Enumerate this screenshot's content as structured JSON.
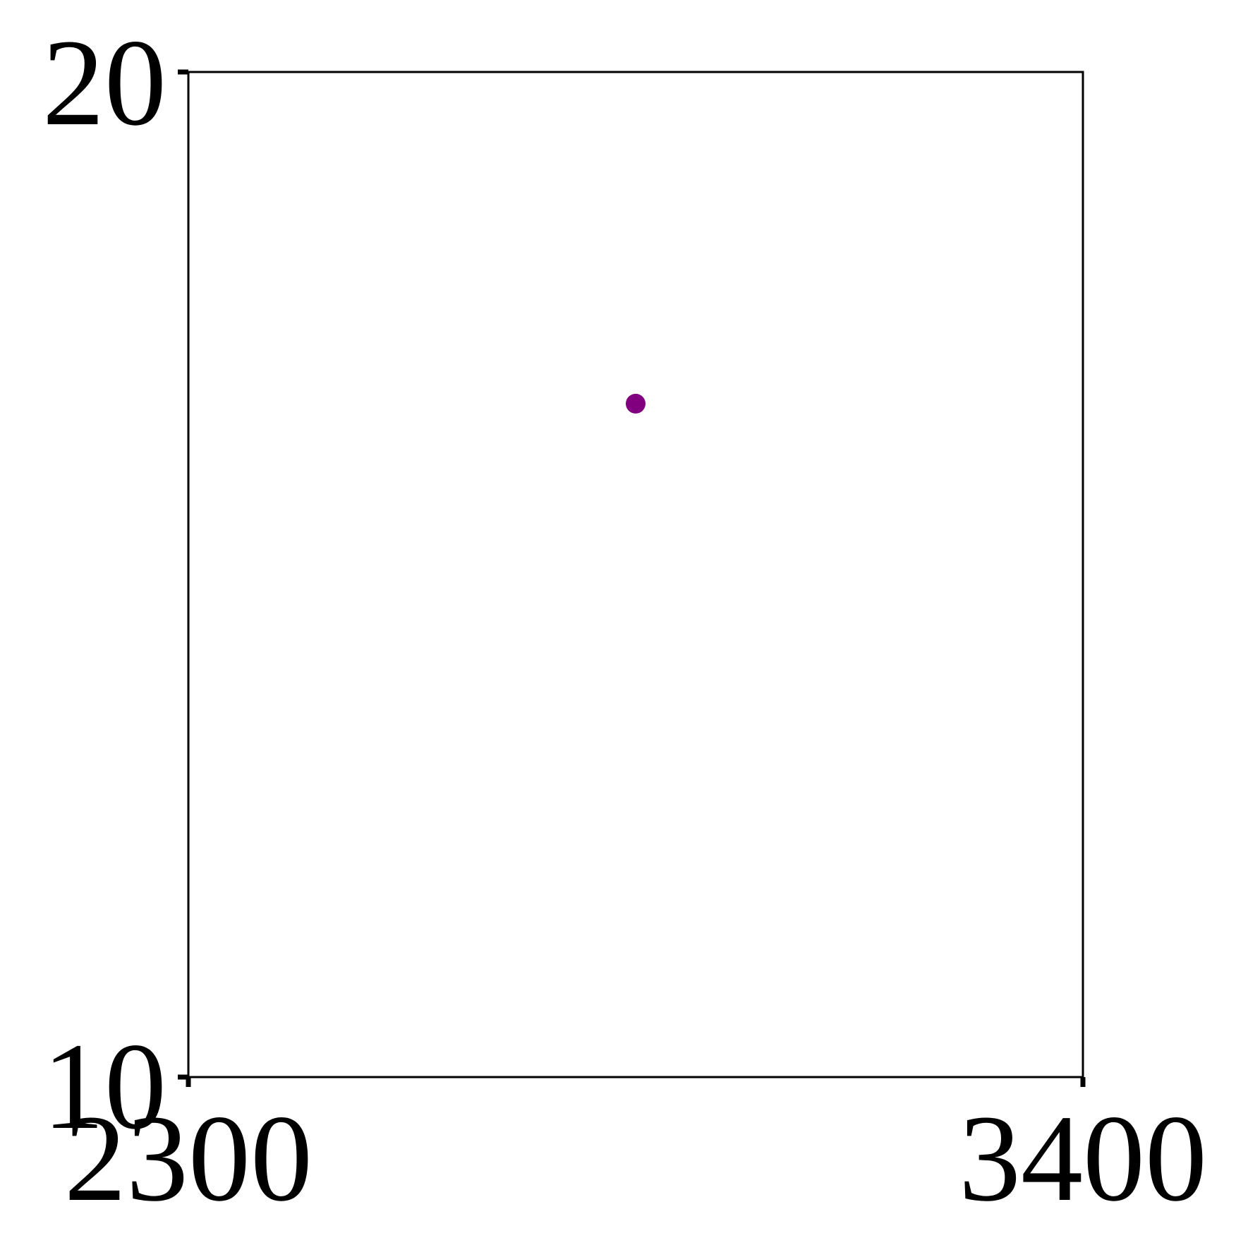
{
  "chart_data": {
    "type": "scatter",
    "title": "",
    "xlabel": "",
    "ylabel": "",
    "xlim": [
      2300,
      3400
    ],
    "ylim": [
      10,
      20
    ],
    "x_ticks": [
      "2300",
      "3400"
    ],
    "y_ticks": [
      "10",
      "20"
    ],
    "grid": false,
    "series": [
      {
        "points": [
          {
            "x": 2850,
            "y": 16.7
          }
        ]
      }
    ],
    "colors": {
      "point": "#800080",
      "frame": "#000000"
    }
  }
}
